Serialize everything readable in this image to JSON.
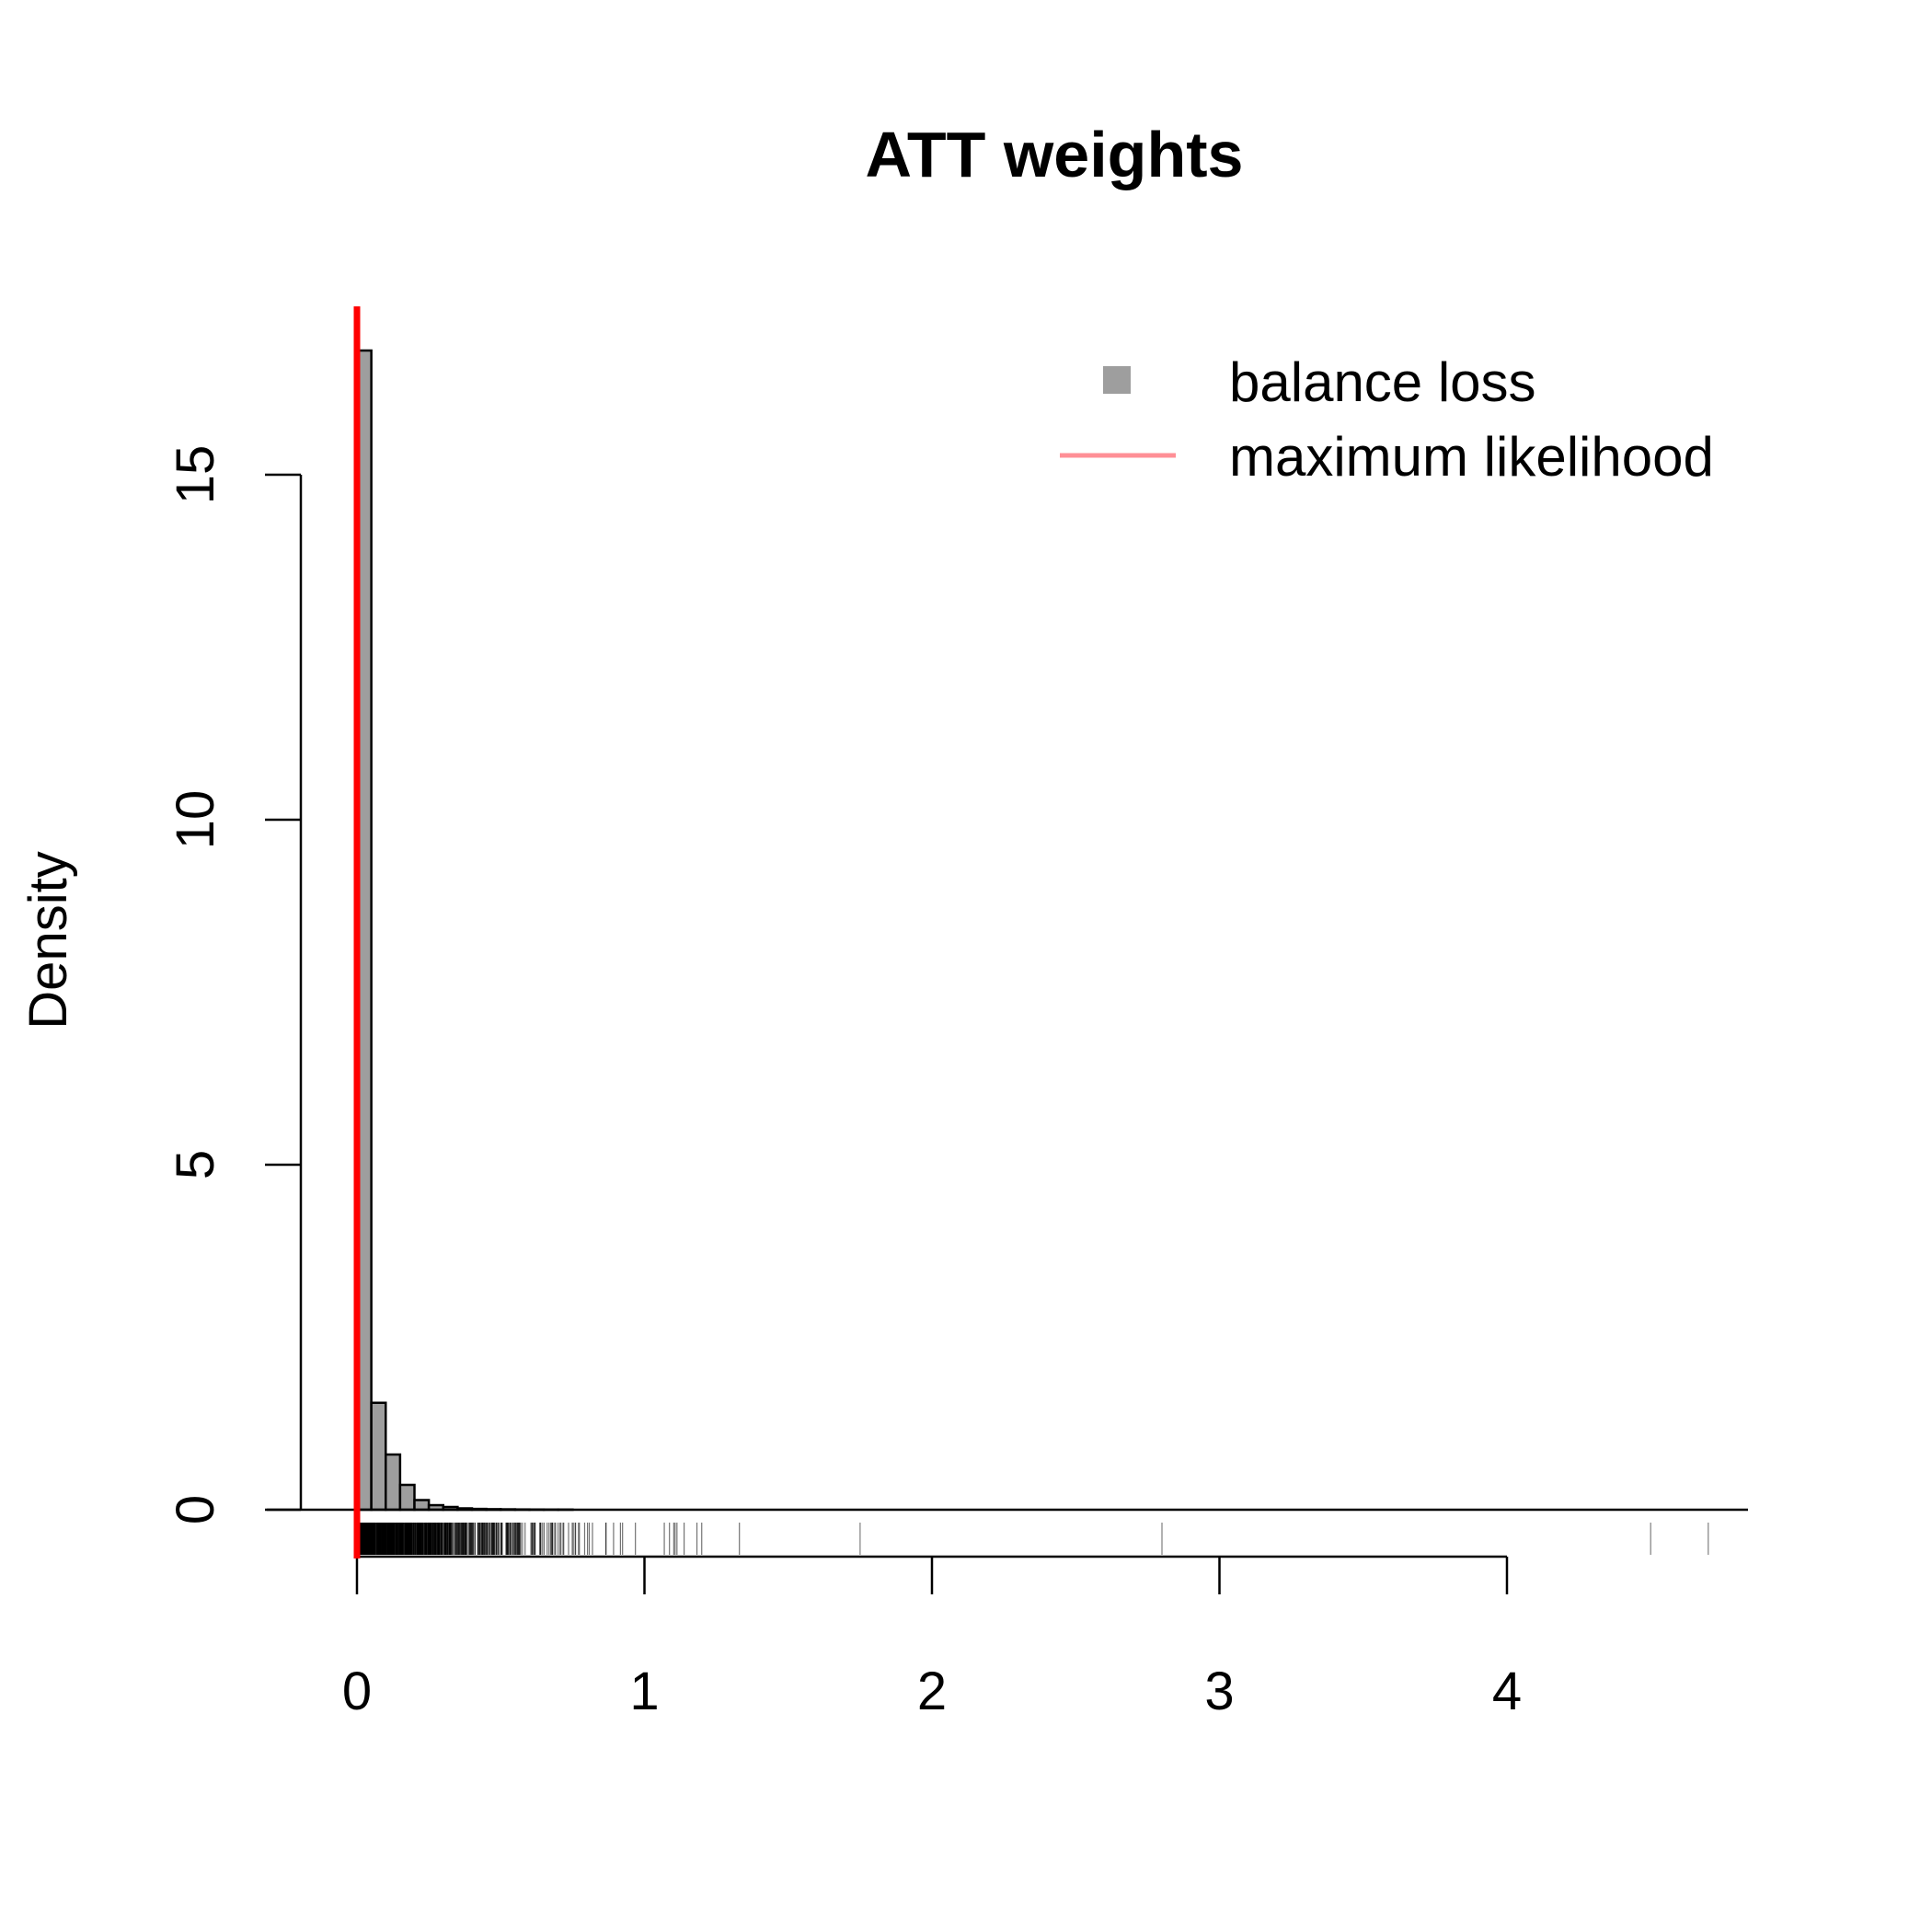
{
  "chart_data": {
    "type": "bar",
    "title": "ATT weights",
    "xlabel": "",
    "ylabel": "Density",
    "xlim": [
      0,
      4.8
    ],
    "ylim": [
      0,
      17.5
    ],
    "x_ticks": [
      "0",
      "1",
      "2",
      "3",
      "4"
    ],
    "y_ticks": [
      "0",
      "5",
      "10",
      "15"
    ],
    "bin_width": 0.05,
    "bin_start": 0,
    "values": [
      16.8,
      1.55,
      0.8,
      0.36,
      0.14,
      0.066,
      0.04,
      0.02,
      0.012,
      0.008,
      0.006,
      0.004,
      0.003,
      0.002,
      0.002
    ],
    "rug_outliers": [
      1.75,
      2.8,
      4.5,
      4.7
    ],
    "ml_weight_line": 0.0,
    "legend": {
      "position": "top-right",
      "entries": [
        {
          "label": "balance loss",
          "kind": "square",
          "color": "#9e9e9e"
        },
        {
          "label": "maximum likelihood",
          "kind": "line",
          "color": "#ff8f96"
        }
      ]
    },
    "colors": {
      "bar": "#9e9e9e",
      "ml_line": "#ff0000"
    }
  }
}
